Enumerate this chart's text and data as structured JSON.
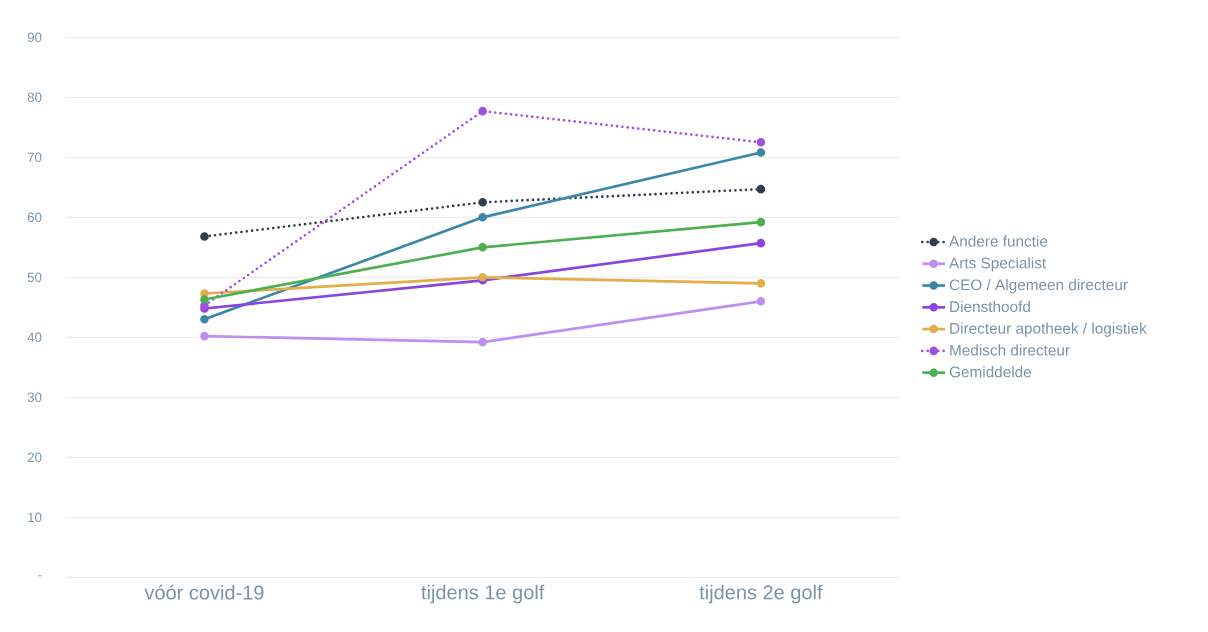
{
  "chart_data": {
    "type": "line",
    "categories": [
      "vóór covid-19",
      "tijdens 1e golf",
      "tijdens 2e golf"
    ],
    "series": [
      {
        "name": "Andere functie",
        "color": "#2e3f4f",
        "line_style": "dotted",
        "values": [
          56.8,
          62.5,
          64.7
        ]
      },
      {
        "name": "Arts Specialist",
        "color": "#c08ef0",
        "line_style": "solid",
        "values": [
          40.2,
          39.2,
          46
        ]
      },
      {
        "name": "CEO / Algemeen directeur",
        "color": "#3a87a8",
        "line_style": "solid",
        "values": [
          43,
          60,
          70.8
        ]
      },
      {
        "name": "Diensthoofd",
        "color": "#8a44e0",
        "line_style": "solid",
        "values": [
          44.8,
          49.5,
          55.7
        ]
      },
      {
        "name": "Directeur apotheek / logistiek",
        "color": "#e3ad4a",
        "line_style": "solid",
        "values": [
          47.3,
          50,
          49
        ]
      },
      {
        "name": "Medisch directeur",
        "color": "#a050e0",
        "line_style": "dotted",
        "values": [
          45.3,
          77.7,
          72.5
        ]
      },
      {
        "name": "Gemiddelde",
        "color": "#4caf50",
        "line_style": "solid",
        "values": [
          46.3,
          55,
          59.2
        ]
      }
    ],
    "ylim": [
      0,
      90
    ],
    "yticks": [
      {
        "value": 0,
        "label": "-"
      },
      10,
      20,
      30,
      40,
      50,
      60,
      70,
      80,
      90
    ],
    "grid": "y",
    "legend": "right",
    "marker": "circle"
  }
}
